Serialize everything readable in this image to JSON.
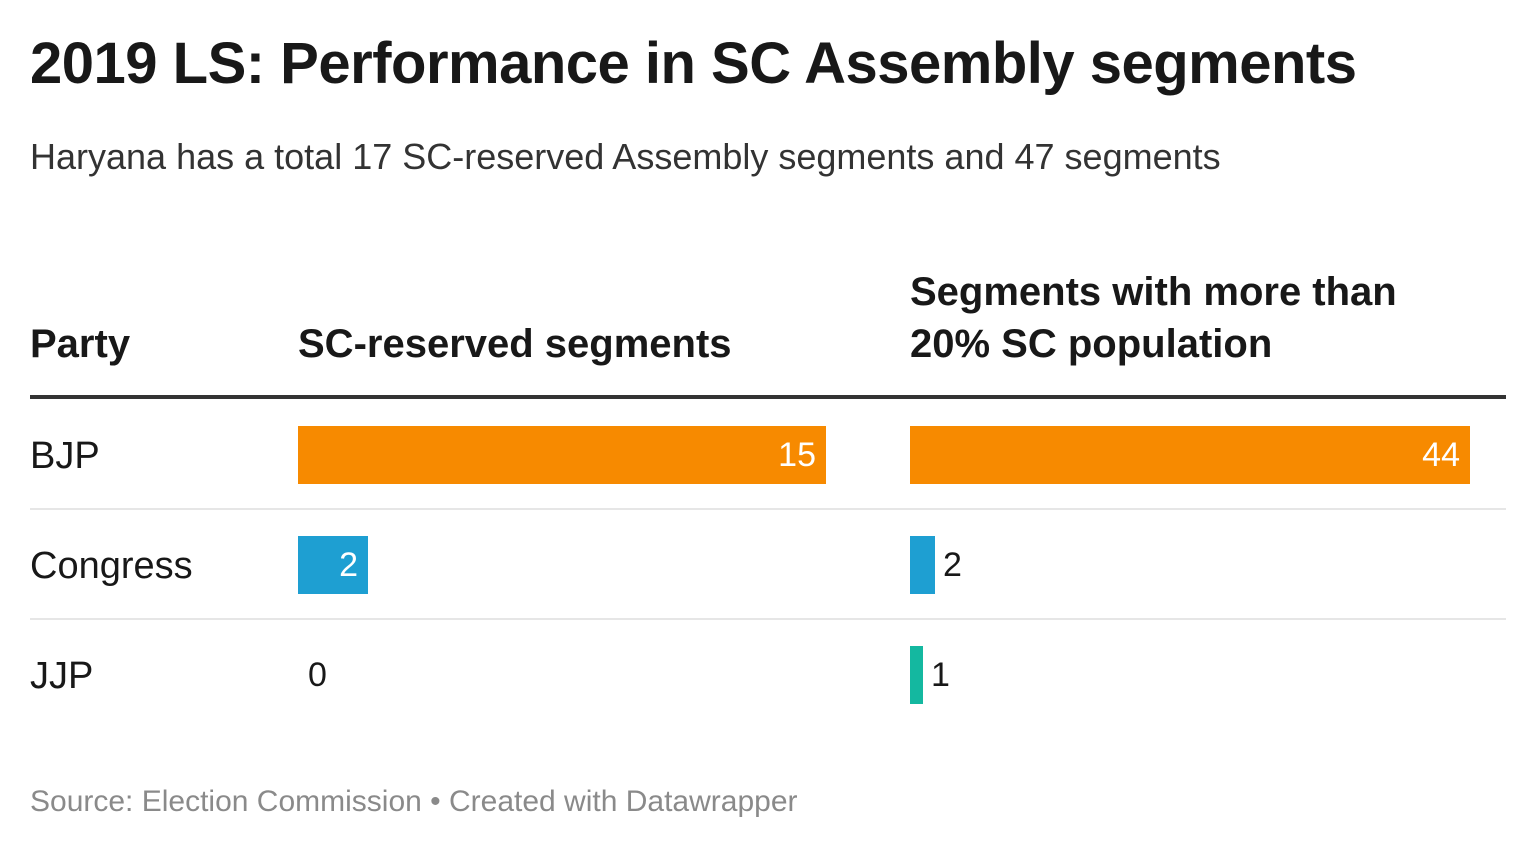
{
  "header": {
    "title": "2019 LS: Performance in SC Assembly segments",
    "subtitle": "Haryana has a total 17 SC-reserved Assembly segments and 47 segments"
  },
  "table": {
    "columns": {
      "party": "Party",
      "sc_reserved": "SC-reserved segments",
      "sc_population": "Segments with more than 20% SC population"
    }
  },
  "chart_data": {
    "type": "bar",
    "categories": [
      "BJP",
      "Congress",
      "JJP"
    ],
    "series": [
      {
        "name": "SC-reserved segments",
        "values": [
          15,
          2,
          0
        ]
      },
      {
        "name": "Segments with more than 20% SC population",
        "values": [
          44,
          2,
          1
        ]
      }
    ],
    "colors": [
      "#f78a00",
      "#1e9fd2",
      "#14b8a0"
    ],
    "title": "2019 LS: Performance in SC Assembly segments",
    "subtitle": "Haryana has a total 17 SC-reserved Assembly segments and 47 segments"
  },
  "footer": {
    "source": "Source: Election Commission • Created with Datawrapper"
  }
}
